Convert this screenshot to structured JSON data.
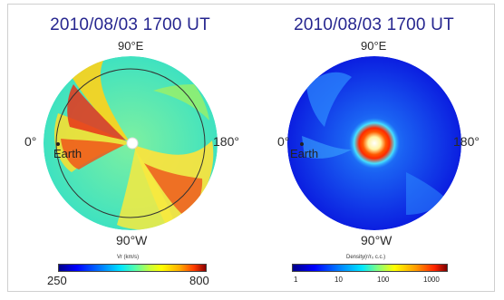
{
  "left_panel": {
    "title": "2010/08/03 1700 UT",
    "label_top": "90°E",
    "label_left": "0°",
    "label_right": "180°",
    "label_bottom": "90°W",
    "earth_label": "Earth",
    "colorbar": {
      "title": "Vr (km/s)",
      "min_label": "250",
      "max_label": "800"
    }
  },
  "right_panel": {
    "title": "2010/08/03 1700 UT",
    "label_top": "90°E",
    "label_left": "0°",
    "label_right": "180°",
    "label_bottom": "90°W",
    "earth_label": "Earth",
    "colorbar": {
      "title": "Density(r/r₀ c.c.)",
      "ticks": [
        "1",
        "10",
        "100",
        "1000"
      ]
    }
  },
  "colors": {
    "title": "#26268f",
    "background_disk_left": "#48e6b0",
    "background_disk_right": "#0a20e6"
  }
}
